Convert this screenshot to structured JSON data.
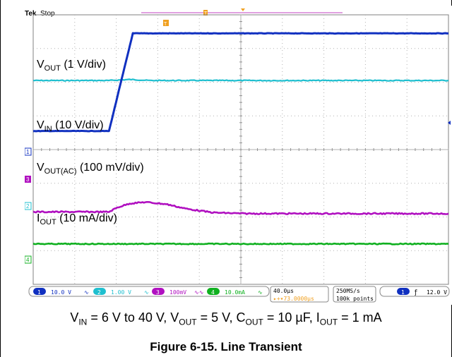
{
  "scope": {
    "brand": "Tek",
    "status": "Stop",
    "channel_markers": [
      "1",
      "2",
      "3",
      "4"
    ],
    "trigger_marker": "T"
  },
  "chart_data": {
    "type": "line",
    "title": "Figure 6-15. Line Transient",
    "conditions": {
      "prefix_v_in": "V",
      "sub_in": "IN",
      "val_in": " = 6 V to 40 V, V",
      "sub_out": "OUT",
      "val_out": " = 5 V, C",
      "sub_cout": "OUT",
      "val_cout": " = 10 µF, I",
      "sub_iout": "OUT",
      "val_iout": " = 1 mA"
    },
    "x_axis": {
      "divisions": 10,
      "time_per_div": "40.0µs",
      "trigger_position": "73.0000µs",
      "unit": "µs",
      "range": [
        -73,
        327
      ]
    },
    "y_axis": {
      "divisions": 8
    },
    "series": [
      {
        "name_main": "V",
        "name_sub": "OUT",
        "name_rest": " (1 V/div)",
        "color": "#1fbfcf",
        "scale": "1.00 V",
        "x": [
          -73,
          0,
          20,
          40,
          327
        ],
        "y": [
          2.05,
          2.05,
          2.08,
          2.05,
          2.05
        ]
      },
      {
        "name_main": "V",
        "name_sub": "IN",
        "name_rest": " (10 V/div)",
        "color": "#1030c0",
        "scale": "10.0 V",
        "x": [
          -73,
          0,
          23,
          327
        ],
        "y": [
          0.55,
          0.55,
          3.45,
          3.45
        ]
      },
      {
        "name_main": "V",
        "name_sub": "OUT(AC)",
        "name_rest": " (100 mV/div)",
        "color": "#b010c0",
        "scale": "100mV",
        "x": [
          -73,
          0,
          8,
          20,
          35,
          55,
          75,
          100,
          130,
          327
        ],
        "y": [
          -1.85,
          -1.85,
          -1.72,
          -1.6,
          -1.56,
          -1.62,
          -1.76,
          -1.87,
          -1.9,
          -1.9
        ]
      },
      {
        "name_main": "I",
        "name_sub": "OUT",
        "name_rest": " (10 mA/div)",
        "color": "#10b020",
        "scale": "10.0mA",
        "x": [
          -73,
          327
        ],
        "y": [
          -2.8,
          -2.8
        ]
      }
    ]
  },
  "status_bar": {
    "ch1": "1",
    "ch1_scale": "10.0 V",
    "ch2": "2",
    "ch2_scale": "1.00 V",
    "ch3": "3",
    "ch3_scale": "100mV",
    "ch4": "4",
    "ch4_scale": "10.0mA",
    "timebase": "40.0µs",
    "trigger_offset": "▸+▾73.0000µs",
    "sample_rate": "250MS/s",
    "record_length": "100k points",
    "trigger_source": "1",
    "trigger_level": "12.0 V"
  }
}
